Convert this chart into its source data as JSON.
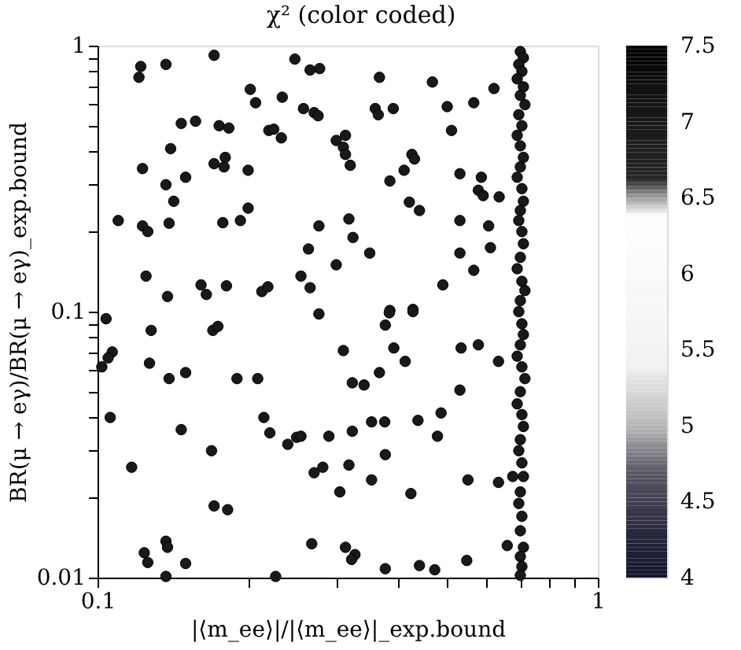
{
  "chart_data": {
    "type": "scatter",
    "title": "χ² (color coded)",
    "xlabel": "|⟨m_ee⟩|/|⟨m_ee⟩|_exp.bound",
    "ylabel": "BR(μ → eγ)/BR(μ → eγ)_exp.bound",
    "log": "xy",
    "grid": false,
    "marker": "circle",
    "clim": [
      4,
      7.5
    ],
    "cticks": [
      4,
      4.5,
      5,
      5.5,
      6,
      6.5,
      7,
      7.5
    ],
    "xlim": [
      0.1,
      1
    ],
    "ylim": [
      0.01,
      1
    ],
    "xticks": [
      0.1,
      {
        "value": 0.2,
        "label": null
      },
      {
        "value": 0.3,
        "label": null
      },
      {
        "value": 0.4,
        "label": null
      },
      {
        "value": 0.5,
        "label": null
      },
      {
        "value": 0.6,
        "label": null
      },
      {
        "value": 0.7,
        "label": null
      },
      {
        "value": 0.8,
        "label": null
      },
      {
        "value": 0.9,
        "label": null
      },
      1
    ],
    "yticks": [
      0.01,
      {
        "value": 0.02,
        "label": null
      },
      {
        "value": 0.03,
        "label": null
      },
      {
        "value": 0.04,
        "label": null
      },
      {
        "value": 0.05,
        "label": null
      },
      {
        "value": 0.06,
        "label": null
      },
      {
        "value": 0.07,
        "label": null
      },
      {
        "value": 0.08,
        "label": null
      },
      {
        "value": 0.09,
        "label": null
      },
      0.1,
      {
        "value": 0.2,
        "label": null
      },
      {
        "value": 0.3,
        "label": null
      },
      {
        "value": 0.4,
        "label": null
      },
      {
        "value": 0.5,
        "label": null
      },
      {
        "value": 0.6,
        "label": null
      },
      {
        "value": 0.7,
        "label": null
      },
      {
        "value": 0.8,
        "label": null
      },
      {
        "value": 0.9,
        "label": null
      },
      1
    ],
    "series": [
      {
        "color": "#000000",
        "x": [
          0.171,
          0.122,
          0.121,
          0.137,
          0.248,
          0.278,
          0.266,
          0.202,
          0.207,
          0.234,
          0.258,
          0.271,
          0.276,
          0.147,
          0.157,
          0.175,
          0.183,
          0.22,
          0.225,
          0.233,
          0.3,
          0.14,
          0.171,
          0.18,
          0.179,
          0.2,
          0.123,
          0.137,
          0.15,
          0.142,
          0.2,
          0.11,
          0.123,
          0.126,
          0.139,
          0.178,
          0.193,
          0.277,
          0.264,
          0.3,
          0.125,
          0.161,
          0.165,
          0.181,
          0.213,
          0.219,
          0.255,
          0.266,
          0.138,
          0.366,
          0.467,
          0.5,
          0.565,
          0.62,
          0.359,
          0.364,
          0.39,
          0.51,
          0.313,
          0.31,
          0.313,
          0.32,
          0.425,
          0.43,
          0.41,
          0.384,
          0.53,
          0.585,
          0.577,
          0.59,
          0.635,
          0.42,
          0.44,
          0.318,
          0.53,
          0.605,
          0.324,
          0.35,
          0.53,
          0.61,
          0.565,
          0.49,
          0.384,
          0.427,
          0.104,
          0.128,
          0.17,
          0.174,
          0.277,
          0.107,
          0.105,
          0.102,
          0.127,
          0.139,
          0.15,
          0.19,
          0.209,
          0.106,
          0.147,
          0.215,
          0.221,
          0.169,
          0.24,
          0.25,
          0.255,
          0.29,
          0.117,
          0.271,
          0.282,
          0.171,
          0.182,
          0.268,
          0.124,
          0.126,
          0.137,
          0.138,
          0.137,
          0.15,
          0.227,
          0.305,
          0.383,
          0.427,
          0.376,
          0.31,
          0.391,
          0.412,
          0.533,
          0.577,
          0.633,
          0.323,
          0.341,
          0.366,
          0.53,
          0.486,
          0.437,
          0.353,
          0.375,
          0.323,
          0.478,
          0.376,
          0.318,
          0.353,
          0.55,
          0.633,
          0.676,
          0.423,
          0.313,
          0.327,
          0.322,
          0.376,
          0.44,
          0.472,
          0.547,
          0.659,
          0.7,
          0.71,
          0.695,
          0.705,
          0.69,
          0.71,
          0.7,
          0.715,
          0.695,
          0.705,
          0.69,
          0.7,
          0.71,
          0.7,
          0.69,
          0.705,
          0.71,
          0.7,
          0.695,
          0.705,
          0.71,
          0.7,
          0.69,
          0.705,
          0.715,
          0.7,
          0.695,
          0.705,
          0.71,
          0.7,
          0.69,
          0.705,
          0.715,
          0.7,
          0.69,
          0.705,
          0.71,
          0.7,
          0.695,
          0.705,
          0.71,
          0.7,
          0.695,
          0.705,
          0.7,
          0.71,
          0.7,
          0.705,
          0.7
        ],
        "values": [
          0.92,
          0.835,
          0.76,
          0.85,
          0.89,
          0.82,
          0.81,
          0.685,
          0.61,
          0.64,
          0.58,
          0.56,
          0.545,
          0.51,
          0.52,
          0.5,
          0.49,
          0.48,
          0.485,
          0.45,
          0.44,
          0.41,
          0.36,
          0.38,
          0.35,
          0.34,
          0.345,
          0.3,
          0.32,
          0.26,
          0.245,
          0.22,
          0.21,
          0.2,
          0.215,
          0.216,
          0.22,
          0.21,
          0.172,
          0.15,
          0.136,
          0.126,
          0.116,
          0.125,
          0.119,
          0.124,
          0.136,
          0.123,
          0.114,
          0.76,
          0.73,
          0.59,
          0.61,
          0.69,
          0.58,
          0.55,
          0.58,
          0.48,
          0.46,
          0.415,
          0.39,
          0.355,
          0.39,
          0.375,
          0.34,
          0.31,
          0.33,
          0.32,
          0.286,
          0.273,
          0.27,
          0.258,
          0.24,
          0.223,
          0.22,
          0.21,
          0.19,
          0.166,
          0.166,
          0.174,
          0.143,
          0.126,
          0.101,
          0.102,
          0.094,
          0.085,
          0.085,
          0.088,
          0.098,
          0.0705,
          0.067,
          0.062,
          0.064,
          0.056,
          0.059,
          0.056,
          0.056,
          0.04,
          0.036,
          0.04,
          0.035,
          0.03,
          0.0317,
          0.0337,
          0.034,
          0.034,
          0.026,
          0.0248,
          0.026,
          0.0186,
          0.018,
          0.0134,
          0.0124,
          0.0114,
          0.0137,
          0.013,
          0.0101,
          0.0113,
          0.0101,
          0.021,
          0.099,
          0.1,
          0.089,
          0.0714,
          0.073,
          0.065,
          0.073,
          0.075,
          0.065,
          0.054,
          0.053,
          0.059,
          0.0507,
          0.0416,
          0.039,
          0.0385,
          0.0385,
          0.0355,
          0.034,
          0.029,
          0.0265,
          0.0233,
          0.0233,
          0.0228,
          0.024,
          0.0207,
          0.013,
          0.0122,
          0.0117,
          0.0108,
          0.0111,
          0.0107,
          0.0116,
          0.0132,
          0.95,
          0.9,
          0.85,
          0.8,
          0.75,
          0.7,
          0.65,
          0.6,
          0.55,
          0.5,
          0.46,
          0.42,
          0.38,
          0.35,
          0.32,
          0.29,
          0.26,
          0.24,
          0.22,
          0.2,
          0.18,
          0.16,
          0.145,
          0.13,
          0.12,
          0.11,
          0.1,
          0.09,
          0.082,
          0.075,
          0.068,
          0.062,
          0.056,
          0.05,
          0.045,
          0.041,
          0.037,
          0.033,
          0.03,
          0.027,
          0.024,
          0.021,
          0.019,
          0.017,
          0.015,
          0.013,
          0.012,
          0.011,
          0.0102
        ],
        "cvalues": [
          7,
          7,
          7,
          7,
          7,
          7,
          7,
          7,
          7,
          7,
          7,
          7,
          7,
          7,
          7,
          7,
          7,
          7,
          7,
          7,
          7,
          7,
          7,
          7,
          7,
          7,
          7,
          7,
          7,
          7,
          7,
          7,
          7,
          7,
          7,
          7,
          7,
          7,
          7,
          7,
          7,
          7,
          7,
          7,
          7,
          7,
          7,
          7,
          7,
          7,
          7,
          7,
          7,
          7,
          7,
          7,
          7,
          7,
          7,
          7,
          7,
          7,
          7,
          7,
          7,
          7,
          7,
          7,
          7,
          7,
          7,
          7,
          7,
          7,
          7,
          7,
          7,
          7,
          7,
          7,
          7,
          7,
          7,
          7,
          7,
          7,
          7,
          7,
          7,
          7,
          7,
          7,
          7,
          7,
          7,
          7,
          7,
          7,
          7,
          7,
          7,
          7,
          7,
          7,
          7,
          7,
          7,
          7,
          7,
          7,
          7,
          7,
          7,
          7,
          7,
          7,
          7,
          7,
          7,
          7,
          7,
          7,
          7,
          7,
          7,
          7,
          7,
          7,
          7,
          7,
          7,
          7,
          7,
          7,
          7,
          7,
          7,
          7,
          7,
          7,
          7,
          7,
          7,
          7,
          7,
          7,
          7,
          7,
          7,
          7,
          7,
          7,
          7,
          7,
          7,
          7,
          7,
          7,
          7,
          7,
          7,
          7,
          7,
          7,
          7,
          7,
          7,
          7,
          7,
          7,
          7,
          7,
          7,
          7,
          7,
          7,
          7,
          7,
          7,
          7,
          7,
          7,
          7,
          7,
          7,
          7,
          7,
          7,
          7,
          7,
          7,
          7,
          7,
          7,
          7,
          7,
          7,
          7,
          7,
          7,
          7,
          7,
          7
        ]
      }
    ]
  }
}
